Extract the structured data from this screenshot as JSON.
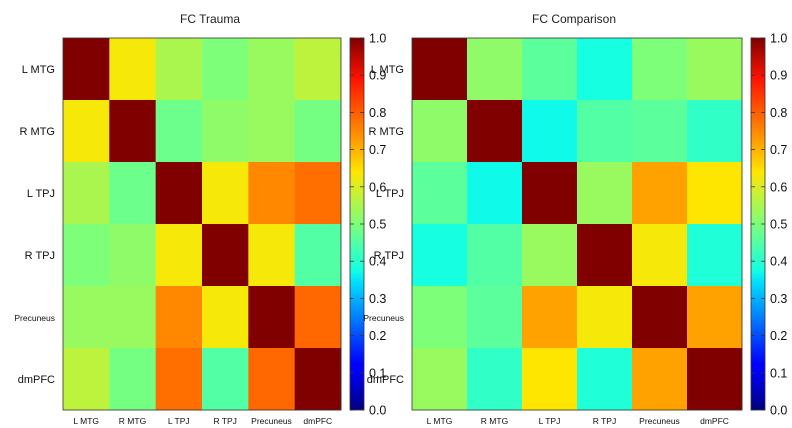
{
  "chart_data": [
    {
      "type": "heatmap",
      "title": "FC Trauma",
      "rows": [
        "L MTG",
        "R MTG",
        "L TPJ",
        "R TPJ",
        "Precuneus",
        "dmPFC"
      ],
      "columns": [
        "L MTG",
        "R MTG",
        "L TPJ",
        "R TPJ",
        "Precuneus",
        "dmPFC"
      ],
      "values": [
        [
          1.0,
          0.63,
          0.55,
          0.5,
          0.53,
          0.57
        ],
        [
          0.63,
          1.0,
          0.48,
          0.52,
          0.53,
          0.49
        ],
        [
          0.55,
          0.48,
          1.0,
          0.63,
          0.75,
          0.78
        ],
        [
          0.5,
          0.52,
          0.63,
          1.0,
          0.63,
          0.45
        ],
        [
          0.53,
          0.53,
          0.75,
          0.63,
          1.0,
          0.79
        ],
        [
          0.57,
          0.49,
          0.78,
          0.45,
          0.79,
          1.0
        ]
      ],
      "colorbar": {
        "range": [
          0.0,
          1.0
        ],
        "ticks": [
          "0.0",
          "0.1",
          "0.2",
          "0.3",
          "0.4",
          "0.5",
          "0.6",
          "0.7",
          "0.8",
          "0.9",
          "1.0"
        ],
        "colormap": "jet"
      }
    },
    {
      "type": "heatmap",
      "title": "FC Comparison",
      "rows": [
        "L MTG",
        "R MTG",
        "L TPJ",
        "R TPJ",
        "Precuneus",
        "dmPFC"
      ],
      "columns": [
        "L MTG",
        "R MTG",
        "L TPJ",
        "R TPJ",
        "Precuneus",
        "dmPFC"
      ],
      "values": [
        [
          1.0,
          0.52,
          0.46,
          0.38,
          0.5,
          0.53
        ],
        [
          0.52,
          1.0,
          0.37,
          0.45,
          0.46,
          0.41
        ],
        [
          0.46,
          0.37,
          1.0,
          0.53,
          0.72,
          0.64
        ],
        [
          0.38,
          0.45,
          0.53,
          1.0,
          0.63,
          0.39
        ],
        [
          0.5,
          0.46,
          0.72,
          0.63,
          1.0,
          0.72
        ],
        [
          0.53,
          0.41,
          0.64,
          0.39,
          0.72,
          1.0
        ]
      ],
      "colorbar": {
        "range": [
          0.0,
          1.0
        ],
        "ticks": [
          "0.0",
          "0.1",
          "0.2",
          "0.3",
          "0.4",
          "0.5",
          "0.6",
          "0.7",
          "0.8",
          "0.9",
          "1.0"
        ],
        "colormap": "jet"
      }
    }
  ]
}
